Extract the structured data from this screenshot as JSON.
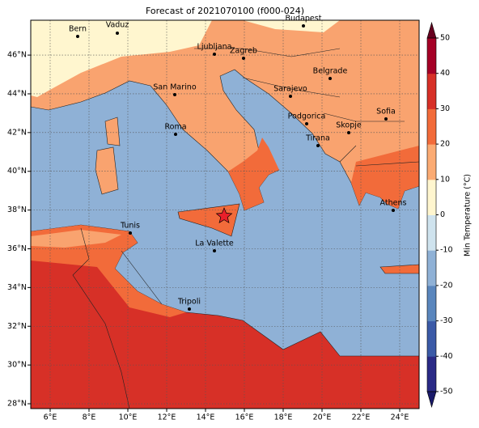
{
  "map": {
    "title": "Forecast of 2021070100 (f000-024)",
    "xlim": [
      5,
      25
    ],
    "ylim": [
      27.75,
      47.8
    ],
    "xticks": [
      {
        "value": 6,
        "label": "6°E"
      },
      {
        "value": 8,
        "label": "8°E"
      },
      {
        "value": 10,
        "label": "10°E"
      },
      {
        "value": 12,
        "label": "12°E"
      },
      {
        "value": 14,
        "label": "14°E"
      },
      {
        "value": 16,
        "label": "16°E"
      },
      {
        "value": 18,
        "label": "18°E"
      },
      {
        "value": 20,
        "label": "20°E"
      },
      {
        "value": 22,
        "label": "22°E"
      },
      {
        "value": 24,
        "label": "24°E"
      }
    ],
    "yticks": [
      {
        "value": 28,
        "label": "28°N"
      },
      {
        "value": 30,
        "label": "30°N"
      },
      {
        "value": 32,
        "label": "32°N"
      },
      {
        "value": 34,
        "label": "34°N"
      },
      {
        "value": 36,
        "label": "36°N"
      },
      {
        "value": 38,
        "label": "38°N"
      },
      {
        "value": 40,
        "label": "40°N"
      },
      {
        "value": 42,
        "label": "42°N"
      },
      {
        "value": 44,
        "label": "44°N"
      },
      {
        "value": 46,
        "label": "46°N"
      }
    ],
    "grid": true,
    "cities": [
      "Bern",
      "Vaduz",
      "Budapest",
      "Ljubljana",
      "Zagreb",
      "San Marino",
      "Belgrade",
      "Sarajevo",
      "Roma",
      "Podgorica",
      "Skopje",
      "Sofia",
      "Tirana",
      "Athens",
      "Tunis",
      "La Valette",
      "Tripoli"
    ],
    "colorbar": {
      "label": "Min Temperature (°C)",
      "lim": [
        -50,
        50
      ],
      "ticks": [
        -50,
        -40,
        -30,
        -20,
        -10,
        0,
        10,
        20,
        30,
        40,
        50
      ],
      "colors": [
        "#2a2a86",
        "#3b5aa7",
        "#5a86bd",
        "#8fb1d6",
        "#cfe3ee",
        "#fff6cf",
        "#fbab73",
        "#f26b3a",
        "#d73027",
        "#a50026"
      ]
    }
  }
}
